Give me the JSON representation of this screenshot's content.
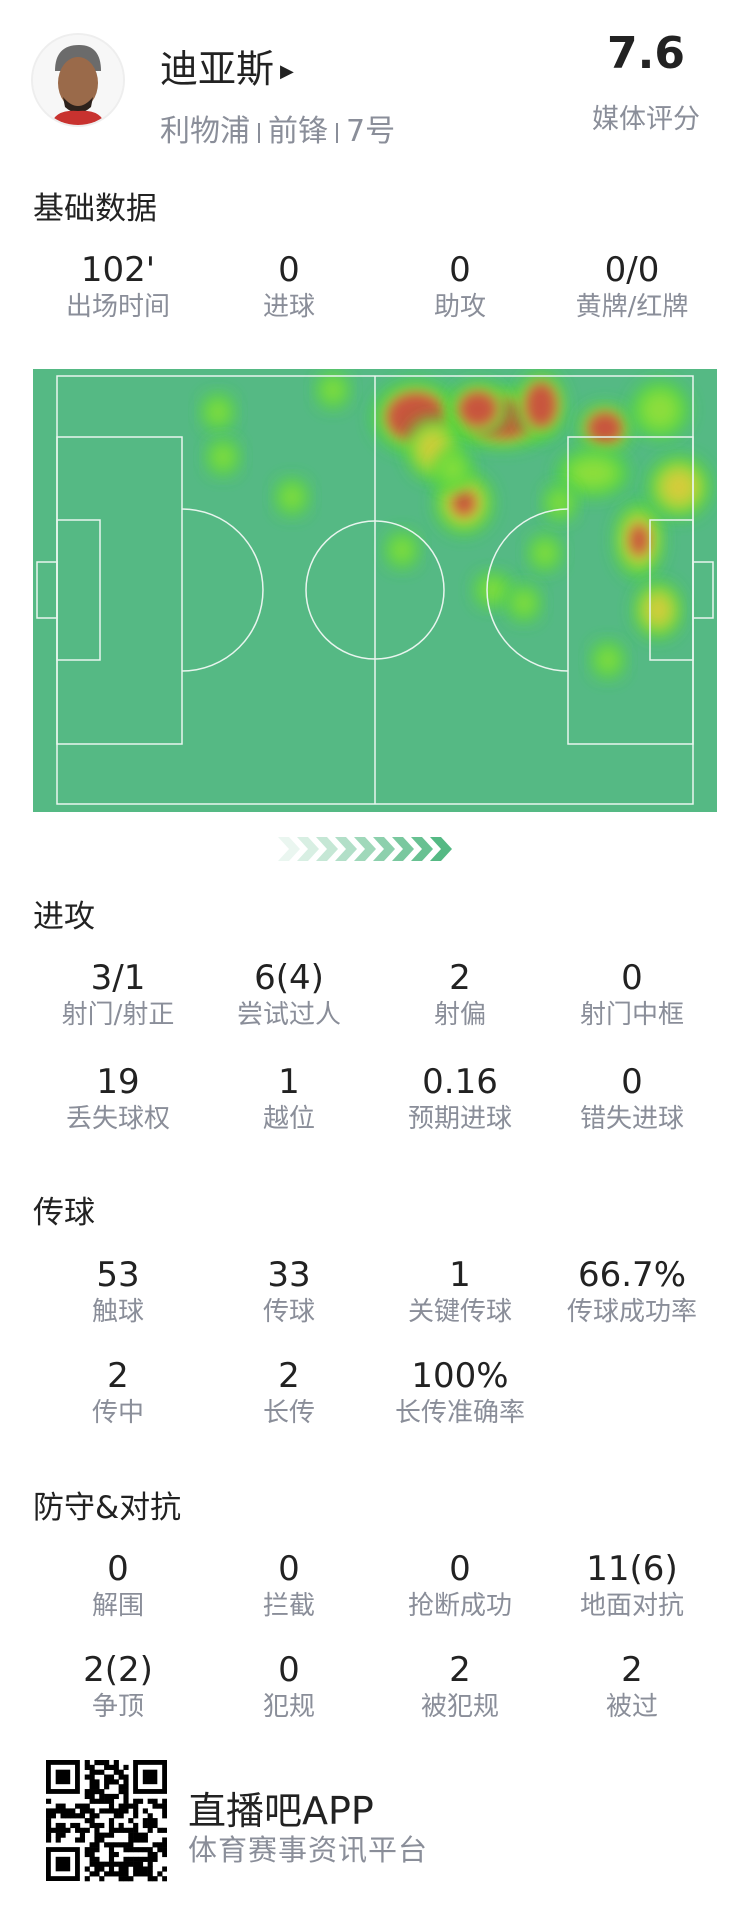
{
  "player": {
    "name": "迪亚斯",
    "team": "利物浦",
    "position": "前锋",
    "number": "7号",
    "rating": "7.6",
    "rating_label": "媒体评分"
  },
  "basic": {
    "title": "基础数据",
    "stats": [
      {
        "value": "102'",
        "label": "出场时间"
      },
      {
        "value": "0",
        "label": "进球"
      },
      {
        "value": "0",
        "label": "助攻"
      },
      {
        "value": "0/0",
        "label": "黄牌/红牌"
      }
    ]
  },
  "heatmap": {
    "pitch_color": "#55b984",
    "line_color": "#e8f5ee",
    "direction": "attacking-right"
  },
  "attack": {
    "title": "进攻",
    "stats": [
      {
        "value": "3/1",
        "label": "射门/射正"
      },
      {
        "value": "6(4)",
        "label": "尝试过人"
      },
      {
        "value": "2",
        "label": "射偏"
      },
      {
        "value": "0",
        "label": "射门中框"
      },
      {
        "value": "19",
        "label": "丢失球权"
      },
      {
        "value": "1",
        "label": "越位"
      },
      {
        "value": "0.16",
        "label": "预期进球"
      },
      {
        "value": "0",
        "label": "错失进球"
      }
    ]
  },
  "passing": {
    "title": "传球",
    "stats": [
      {
        "value": "53",
        "label": "触球"
      },
      {
        "value": "33",
        "label": "传球"
      },
      {
        "value": "1",
        "label": "关键传球"
      },
      {
        "value": "66.7%",
        "label": "传球成功率"
      },
      {
        "value": "2",
        "label": "传中"
      },
      {
        "value": "2",
        "label": "长传"
      },
      {
        "value": "100%",
        "label": "长传准确率"
      }
    ]
  },
  "defense": {
    "title": "防守&对抗",
    "stats": [
      {
        "value": "0",
        "label": "解围"
      },
      {
        "value": "0",
        "label": "拦截"
      },
      {
        "value": "0",
        "label": "抢断成功"
      },
      {
        "value": "11(6)",
        "label": "地面对抗"
      },
      {
        "value": "2(2)",
        "label": "争顶"
      },
      {
        "value": "0",
        "label": "犯规"
      },
      {
        "value": "2",
        "label": "被犯规"
      },
      {
        "value": "2",
        "label": "被过"
      }
    ]
  },
  "footer": {
    "app_name": "直播吧APP",
    "tagline": "体育赛事资讯平台"
  }
}
